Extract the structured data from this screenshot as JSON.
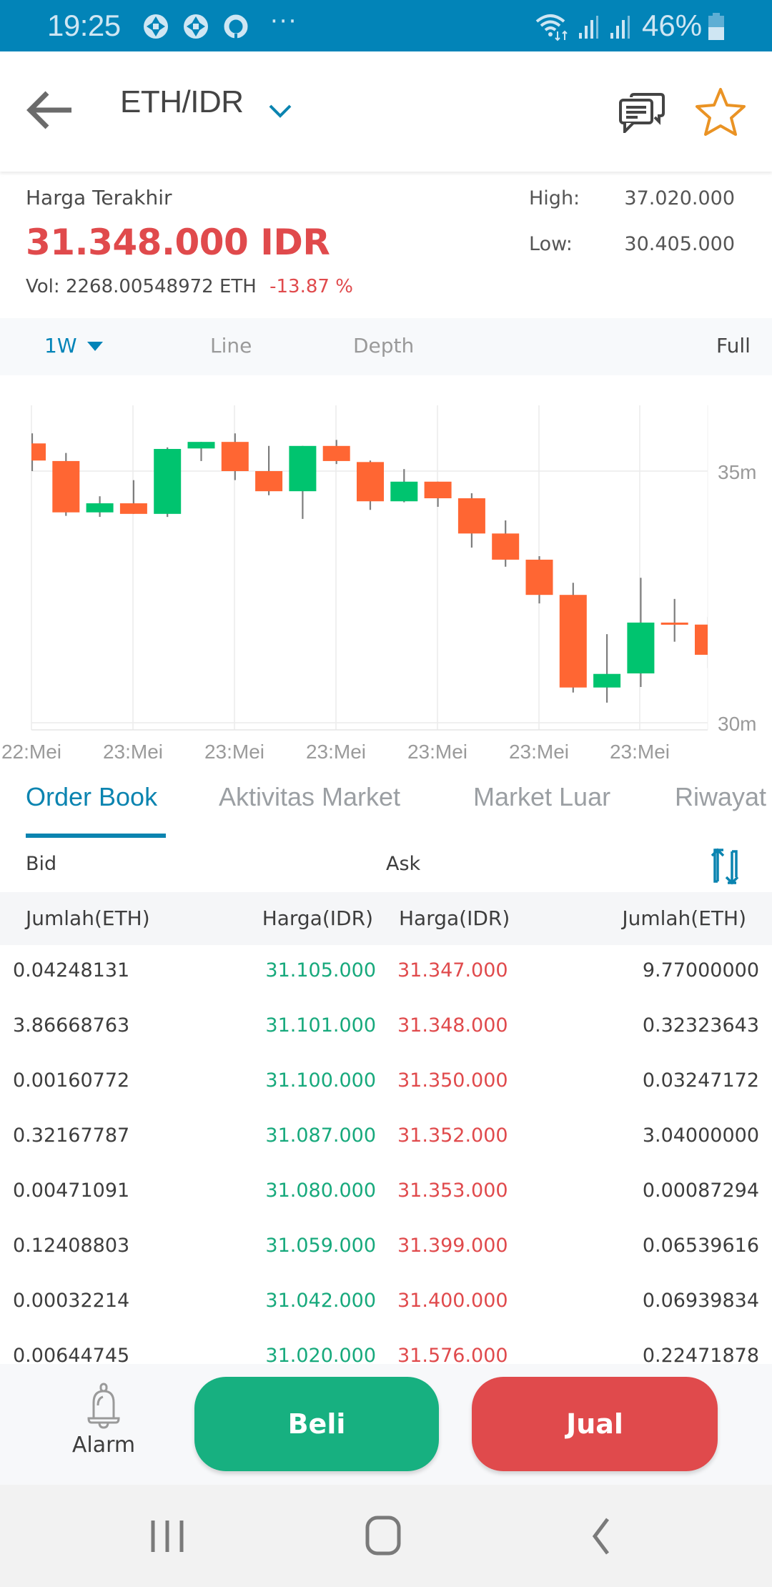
{
  "status_bar": {
    "time": "19:25",
    "notification_icons": [
      "aperture-icon",
      "aperture-icon",
      "ring-app-icon",
      "more-dots-icon"
    ],
    "more_glyph": "···",
    "battery_percent": "46%"
  },
  "app_bar": {
    "pair": "ETH/IDR"
  },
  "price": {
    "last_price_label": "Harga Terakhir",
    "last_price": "31.348.000 IDR",
    "vol_label": "Vol:",
    "volume": "2268.00548972 ETH",
    "change": "-13.87 %",
    "high_label": "High:",
    "high": "37.020.000",
    "low_label": "Low:",
    "low": "30.405.000"
  },
  "chart_toolbar": {
    "interval": "1W",
    "line_label": "Line",
    "depth_label": "Depth",
    "full_label": "Full"
  },
  "colors": {
    "brand": "#0284b8",
    "up": "#00c46f",
    "down": "#ff6633",
    "bid": "#17a97c",
    "ask": "#e04a4c",
    "buy_button": "#17b080",
    "sell_button": "#e04a4c",
    "favorite": "#ea9324"
  },
  "chart_data": {
    "type": "candlestick",
    "title": "",
    "xlabel": "",
    "ylabel": "",
    "y_unit": "m (million IDR)",
    "y_ticks": [
      "35m",
      "30m"
    ],
    "ylim": [
      30,
      35.9
    ],
    "grid": true,
    "x_tick_labels": [
      "22:Mei",
      "23:Mei",
      "23:Mei",
      "23:Mei",
      "23:Mei",
      "23:Mei",
      "23:Mei"
    ],
    "candles": [
      {
        "open": 35.55,
        "high": 35.75,
        "low": 35.0,
        "close": 35.21
      },
      {
        "open": 35.2,
        "high": 35.36,
        "low": 34.11,
        "close": 34.18
      },
      {
        "open": 34.18,
        "high": 34.5,
        "low": 34.09,
        "close": 34.36
      },
      {
        "open": 34.36,
        "high": 34.82,
        "low": 34.15,
        "close": 34.15
      },
      {
        "open": 34.15,
        "high": 35.47,
        "low": 34.09,
        "close": 35.44
      },
      {
        "open": 35.45,
        "high": 35.58,
        "low": 35.2,
        "close": 35.58
      },
      {
        "open": 35.58,
        "high": 35.75,
        "low": 34.82,
        "close": 35.0
      },
      {
        "open": 35.0,
        "high": 35.5,
        "low": 34.52,
        "close": 34.6
      },
      {
        "open": 34.6,
        "high": 35.5,
        "low": 34.05,
        "close": 35.5
      },
      {
        "open": 35.5,
        "high": 35.62,
        "low": 35.14,
        "close": 35.2
      },
      {
        "open": 35.18,
        "high": 35.21,
        "low": 34.23,
        "close": 34.4
      },
      {
        "open": 34.4,
        "high": 35.04,
        "low": 34.38,
        "close": 34.79
      },
      {
        "open": 34.79,
        "high": 34.79,
        "low": 34.29,
        "close": 34.46
      },
      {
        "open": 34.46,
        "high": 34.56,
        "low": 33.48,
        "close": 33.76
      },
      {
        "open": 33.76,
        "high": 34.02,
        "low": 33.1,
        "close": 33.24
      },
      {
        "open": 33.24,
        "high": 33.31,
        "low": 32.37,
        "close": 32.54
      },
      {
        "open": 32.54,
        "high": 32.78,
        "low": 30.6,
        "close": 30.7
      },
      {
        "open": 30.7,
        "high": 31.76,
        "low": 30.4,
        "close": 30.97
      },
      {
        "open": 30.98,
        "high": 32.88,
        "low": 30.71,
        "close": 31.99
      },
      {
        "open": 31.99,
        "high": 32.46,
        "low": 31.61,
        "close": 31.96
      },
      {
        "open": 31.95,
        "high": 32.1,
        "low": 31.09,
        "close": 31.35
      }
    ]
  },
  "tabs": [
    {
      "label": "Order Book",
      "active": true
    },
    {
      "label": "Aktivitas Market",
      "active": false
    },
    {
      "label": "Market Luar",
      "active": false
    },
    {
      "label": "Riwayat",
      "active": false
    }
  ],
  "order_book": {
    "bid_label": "Bid",
    "ask_label": "Ask",
    "columns": [
      "Jumlah(ETH)",
      "Harga(IDR)",
      "Harga(IDR)",
      "Jumlah(ETH)"
    ],
    "rows": [
      {
        "bid_amount": "0.04248131",
        "bid_price": "31.105.000",
        "ask_price": "31.347.000",
        "ask_amount": "9.77000000"
      },
      {
        "bid_amount": "3.86668763",
        "bid_price": "31.101.000",
        "ask_price": "31.348.000",
        "ask_amount": "0.32323643"
      },
      {
        "bid_amount": "0.00160772",
        "bid_price": "31.100.000",
        "ask_price": "31.350.000",
        "ask_amount": "0.03247172"
      },
      {
        "bid_amount": "0.32167787",
        "bid_price": "31.087.000",
        "ask_price": "31.352.000",
        "ask_amount": "3.04000000"
      },
      {
        "bid_amount": "0.00471091",
        "bid_price": "31.080.000",
        "ask_price": "31.353.000",
        "ask_amount": "0.00087294"
      },
      {
        "bid_amount": "0.12408803",
        "bid_price": "31.059.000",
        "ask_price": "31.399.000",
        "ask_amount": "0.06539616"
      },
      {
        "bid_amount": "0.00032214",
        "bid_price": "31.042.000",
        "ask_price": "31.400.000",
        "ask_amount": "0.06939834"
      },
      {
        "bid_amount": "0.00644745",
        "bid_price": "31.020.000",
        "ask_price": "31.576.000",
        "ask_amount": "0.22471878"
      }
    ]
  },
  "bottom_bar": {
    "alarm_label": "Alarm",
    "buy_label": "Beli",
    "sell_label": "Jual"
  }
}
